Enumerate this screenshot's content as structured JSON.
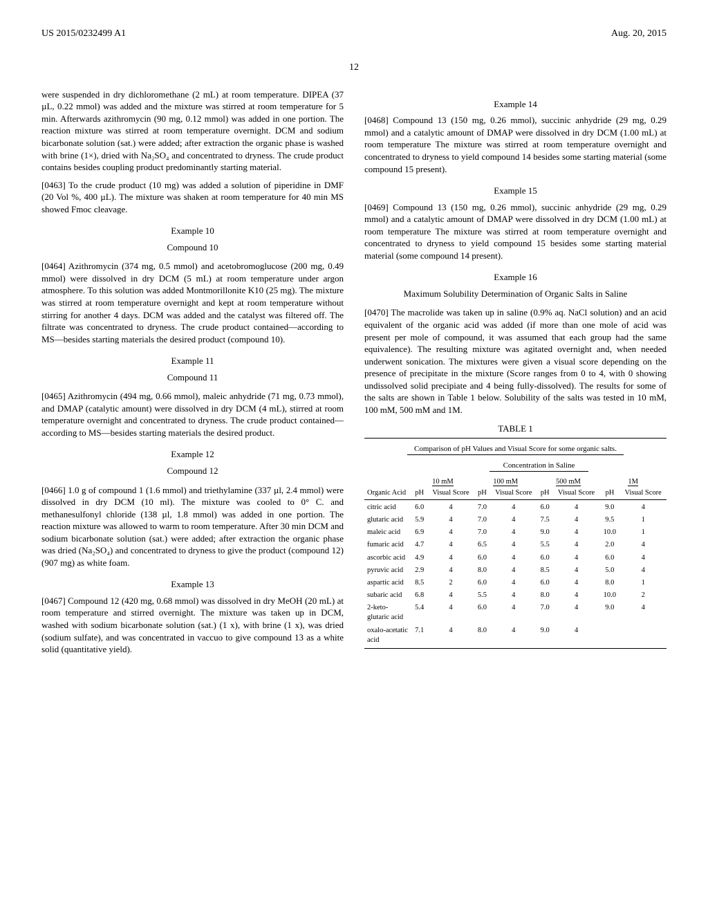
{
  "header": {
    "patent_id": "US 2015/0232499 A1",
    "date": "Aug. 20, 2015"
  },
  "page_number": "12",
  "left_column": {
    "p0": "were suspended in dry dichloromethane (2 mL) at room temperature. DIPEA (37 µL, 0.22 mmol) was added and the mixture was stirred at room temperature for 5 min. Afterwards azithromycin (90 mg, 0.12 mmol) was added in one portion. The reaction mixture was stirred at room temperature overnight. DCM and sodium bicarbonate solution (sat.) were added; after extraction the organic phase is washed with brine (1×), dried with Na₂SO₄ and concentrated to dryness. The crude product contains besides coupling product predominantly starting material.",
    "p0463": "[0463]   To the crude product (10 mg) was added a solution of piperidine in DMF (20 Vol %, 400 µL). The mixture was shaken at room temperature for 40 min MS showed Fmoc cleavage.",
    "ex10": "Example 10",
    "cmp10": "Compound 10",
    "p0464": "[0464]   Azithromycin (374 mg, 0.5 mmol) and acetobromoglucose (200 mg, 0.49 mmol) were dissolved in dry DCM (5 mL) at room temperature under argon atmosphere. To this solution was added Montmorillonite K10 (25 mg). The mixture was stirred at room temperature overnight and kept at room temperature without stirring for another 4 days. DCM was added and the catalyst was filtered off. The filtrate was concentrated to dryness. The crude product contained—according to MS—besides starting materials the desired product (compound 10).",
    "ex11": "Example 11",
    "cmp11": "Compound 11",
    "p0465": "[0465]   Azithromycin (494 mg, 0.66 mmol), maleic anhydride (71 mg, 0.73 mmol), and DMAP (catalytic amount) were dissolved in dry DCM (4 mL), stirred at room temperature overnight and concentrated to dryness. The crude product contained—according to MS—besides starting materials the desired product.",
    "ex12": "Example 12",
    "cmp12": "Compound 12",
    "p0466": "[0466]   1.0 g of compound 1 (1.6 mmol) and triethylamine (337 µl, 2.4 mmol) were dissolved in dry DCM (10 ml). The mixture was cooled to 0° C. and methanesulfonyl chloride (138 µl, 1.8 mmol) was added in one portion. The reaction mixture was allowed to warm to room temperature. After 30 min DCM and sodium bicarbonate solution (sat.) were added; after extraction the organic phase was dried (Na₂SO₄) and concentrated to dryness to give the product (compound 12) (907 mg) as white foam.",
    "ex13": "Example 13",
    "p0467": "[0467]   Compound 12 (420 mg, 0.68 mmol) was dissolved in dry MeOH (20 mL) at room temperature and stirred overnight. The mixture was taken up in DCM, washed with sodium bicarbonate solution (sat.) (1 x), with brine (1 x), was dried (sodium sulfate), and was concentrated in vaccuo to give compound 13 as a white solid (quantitative yield)."
  },
  "right_column": {
    "ex14": "Example 14",
    "p0468": "[0468]   Compound 13 (150 mg, 0.26 mmol), succinic anhydride (29 mg, 0.29 mmol) and a catalytic amount of DMAP were dissolved in dry DCM (1.00 mL) at room temperature The mixture was stirred at room temperature overnight and concentrated to dryness to yield compound 14 besides some starting material (some compound 15 present).",
    "ex15": "Example 15",
    "p0469": "[0469]   Compound 13 (150 mg, 0.26 mmol), succinic anhydride (29 mg, 0.29 mmol) and a catalytic amount of DMAP were dissolved in dry DCM (1.00 mL) at room temperature The mixture was stirred at room temperature overnight and concentrated to dryness to yield compound 15 besides some starting material material (some compound 14 present).",
    "ex16": "Example 16",
    "ex16_sub": "Maximum Solubility Determination of Organic Salts in Saline",
    "p0470": "[0470]   The macrolide was taken up in saline (0.9% aq. NaCl solution) and an acid equivalent of the organic acid was added (if more than one mole of acid was present per mole of compound, it was assumed that each group had the same equivalence). The resulting mixture was agitated overnight and, when needed underwent sonication. The mixtures were given a visual score depending on the presence of precipitate in the mixture (Score ranges from 0 to 4, with 0 showing undissolved solid precipiate and 4 being fully-dissolved). The results for some of the salts are shown in Table 1 below. Solubility of the salts was tested in 10 mM, 100 mM, 500 mM and 1M."
  },
  "table": {
    "title": "TABLE 1",
    "caption": "Comparison of pH Values and Visual Score for some organic salts.",
    "conc_header": "Concentration in Saline",
    "group_headers": [
      "10 mM",
      "100 mM",
      "500 mM",
      "1M"
    ],
    "organic_acid_label": "Organic Acid",
    "sub_headers": [
      "pH",
      "Visual Score"
    ],
    "rows": [
      {
        "acid": "citric acid",
        "v": [
          "6.0",
          "4",
          "7.0",
          "4",
          "6.0",
          "4",
          "9.0",
          "4"
        ]
      },
      {
        "acid": "glutaric acid",
        "v": [
          "5.9",
          "4",
          "7.0",
          "4",
          "7.5",
          "4",
          "9.5",
          "1"
        ]
      },
      {
        "acid": "maleic acid",
        "v": [
          "6.9",
          "4",
          "7.0",
          "4",
          "9.0",
          "4",
          "10.0",
          "1"
        ]
      },
      {
        "acid": "fumaric acid",
        "v": [
          "4.7",
          "4",
          "6.5",
          "4",
          "5.5",
          "4",
          "2.0",
          "4"
        ]
      },
      {
        "acid": "ascorbic acid",
        "v": [
          "4.9",
          "4",
          "6.0",
          "4",
          "6.0",
          "4",
          "6.0",
          "4"
        ]
      },
      {
        "acid": "pyruvic acid",
        "v": [
          "2.9",
          "4",
          "8.0",
          "4",
          "8.5",
          "4",
          "5.0",
          "4"
        ]
      },
      {
        "acid": "aspartic acid",
        "v": [
          "8.5",
          "2",
          "6.0",
          "4",
          "6.0",
          "4",
          "8.0",
          "1"
        ]
      },
      {
        "acid": "subaric acid",
        "v": [
          "6.8",
          "4",
          "5.5",
          "4",
          "8.0",
          "4",
          "10.0",
          "2"
        ]
      },
      {
        "acid": "2-keto-glutaric acid",
        "v": [
          "5.4",
          "4",
          "6.0",
          "4",
          "7.0",
          "4",
          "9.0",
          "4"
        ]
      },
      {
        "acid": "oxalo-acetatic acid",
        "v": [
          "7.1",
          "4",
          "8.0",
          "4",
          "9.0",
          "4",
          "",
          ""
        ]
      }
    ]
  }
}
